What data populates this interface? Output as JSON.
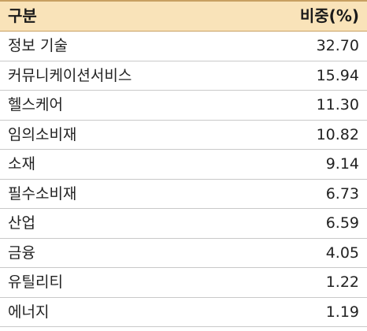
{
  "header": {
    "name": "구분",
    "value": "비중(%)"
  },
  "rows": [
    {
      "name": "정보 기술",
      "value": "32.70"
    },
    {
      "name": "커뮤니케이션서비스",
      "value": "15.94"
    },
    {
      "name": "헬스케어",
      "value": "11.30"
    },
    {
      "name": "임의소비재",
      "value": "10.82"
    },
    {
      "name": "소재",
      "value": "9.14"
    },
    {
      "name": "필수소비재",
      "value": "6.73"
    },
    {
      "name": "산업",
      "value": "6.59"
    },
    {
      "name": "금융",
      "value": "4.05"
    },
    {
      "name": "유틸리티",
      "value": "1.22"
    },
    {
      "name": "에너지",
      "value": "1.19"
    }
  ]
}
